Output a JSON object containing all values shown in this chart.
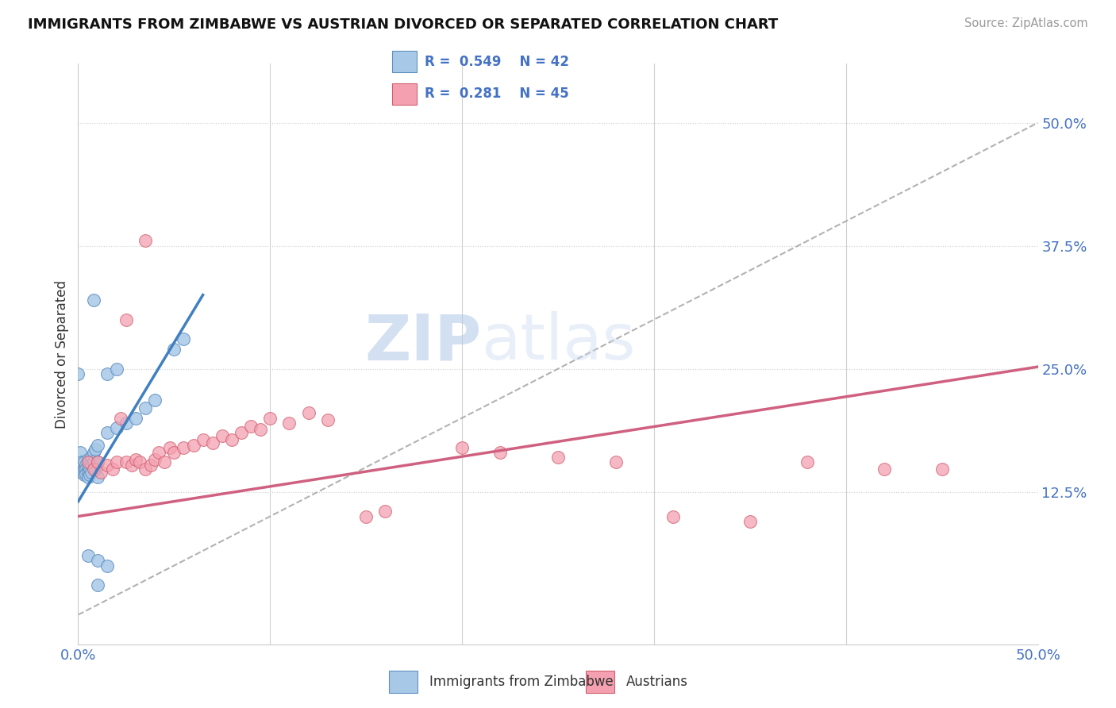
{
  "title": "IMMIGRANTS FROM ZIMBABWE VS AUSTRIAN DIVORCED OR SEPARATED CORRELATION CHART",
  "source_text": "Source: ZipAtlas.com",
  "ylabel": "Divorced or Separated",
  "legend_label1": "Immigrants from Zimbabwe",
  "legend_label2": "Austrians",
  "R1": 0.549,
  "N1": 42,
  "R2": 0.281,
  "N2": 45,
  "color1": "#a8c8e8",
  "color2": "#f4a0b0",
  "color1_edge": "#6090c0",
  "color2_edge": "#d06070",
  "xlim": [
    0.0,
    0.5
  ],
  "ylim": [
    -0.03,
    0.56
  ],
  "yticks_right": [
    0.125,
    0.25,
    0.375,
    0.5
  ],
  "ytick_right_labels": [
    "12.5%",
    "25.0%",
    "37.5%",
    "50.0%"
  ],
  "background_color": "#ffffff",
  "grid_color": "#d0d0d0",
  "blue_scatter": [
    [
      0.001,
      0.165
    ],
    [
      0.002,
      0.155
    ],
    [
      0.002,
      0.145
    ],
    [
      0.003,
      0.155
    ],
    [
      0.003,
      0.148
    ],
    [
      0.003,
      0.142
    ],
    [
      0.004,
      0.152
    ],
    [
      0.004,
      0.148
    ],
    [
      0.004,
      0.143
    ],
    [
      0.005,
      0.158
    ],
    [
      0.005,
      0.15
    ],
    [
      0.005,
      0.145
    ],
    [
      0.005,
      0.14
    ],
    [
      0.006,
      0.155
    ],
    [
      0.006,
      0.148
    ],
    [
      0.006,
      0.142
    ],
    [
      0.007,
      0.16
    ],
    [
      0.007,
      0.152
    ],
    [
      0.007,
      0.145
    ],
    [
      0.008,
      0.165
    ],
    [
      0.008,
      0.156
    ],
    [
      0.009,
      0.168
    ],
    [
      0.009,
      0.148
    ],
    [
      0.01,
      0.172
    ],
    [
      0.01,
      0.155
    ],
    [
      0.01,
      0.14
    ],
    [
      0.015,
      0.185
    ],
    [
      0.015,
      0.245
    ],
    [
      0.02,
      0.19
    ],
    [
      0.02,
      0.25
    ],
    [
      0.025,
      0.195
    ],
    [
      0.03,
      0.2
    ],
    [
      0.035,
      0.21
    ],
    [
      0.04,
      0.218
    ],
    [
      0.05,
      0.27
    ],
    [
      0.055,
      0.28
    ],
    [
      0.0,
      0.245
    ],
    [
      0.005,
      0.06
    ],
    [
      0.01,
      0.055
    ],
    [
      0.015,
      0.05
    ],
    [
      0.008,
      0.32
    ],
    [
      0.01,
      0.03
    ]
  ],
  "pink_scatter": [
    [
      0.005,
      0.155
    ],
    [
      0.008,
      0.148
    ],
    [
      0.01,
      0.155
    ],
    [
      0.012,
      0.145
    ],
    [
      0.015,
      0.152
    ],
    [
      0.018,
      0.148
    ],
    [
      0.02,
      0.155
    ],
    [
      0.022,
      0.2
    ],
    [
      0.025,
      0.155
    ],
    [
      0.028,
      0.152
    ],
    [
      0.03,
      0.158
    ],
    [
      0.032,
      0.155
    ],
    [
      0.035,
      0.148
    ],
    [
      0.038,
      0.152
    ],
    [
      0.04,
      0.158
    ],
    [
      0.042,
      0.165
    ],
    [
      0.045,
      0.155
    ],
    [
      0.048,
      0.17
    ],
    [
      0.05,
      0.165
    ],
    [
      0.055,
      0.17
    ],
    [
      0.06,
      0.172
    ],
    [
      0.065,
      0.178
    ],
    [
      0.07,
      0.175
    ],
    [
      0.075,
      0.182
    ],
    [
      0.08,
      0.178
    ],
    [
      0.085,
      0.185
    ],
    [
      0.09,
      0.192
    ],
    [
      0.095,
      0.188
    ],
    [
      0.1,
      0.2
    ],
    [
      0.11,
      0.195
    ],
    [
      0.12,
      0.205
    ],
    [
      0.13,
      0.198
    ],
    [
      0.15,
      0.1
    ],
    [
      0.16,
      0.105
    ],
    [
      0.2,
      0.17
    ],
    [
      0.22,
      0.165
    ],
    [
      0.25,
      0.16
    ],
    [
      0.28,
      0.155
    ],
    [
      0.31,
      0.1
    ],
    [
      0.35,
      0.095
    ],
    [
      0.38,
      0.155
    ],
    [
      0.42,
      0.148
    ],
    [
      0.45,
      0.148
    ],
    [
      0.025,
      0.3
    ],
    [
      0.035,
      0.38
    ]
  ],
  "blue_line_x": [
    0.0,
    0.065
  ],
  "blue_line_y": [
    0.115,
    0.325
  ],
  "pink_line_x": [
    0.0,
    0.5
  ],
  "pink_line_y": [
    0.1,
    0.252
  ],
  "diag_line_x": [
    0.0,
    0.5
  ],
  "diag_line_y": [
    0.0,
    0.5
  ]
}
